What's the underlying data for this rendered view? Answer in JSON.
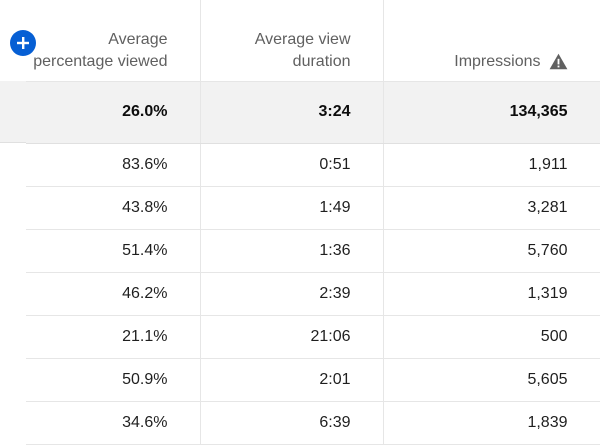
{
  "header": {
    "add_button_label": "+",
    "columns": [
      {
        "label": "Average percentage viewed"
      },
      {
        "label": "Average view duration"
      },
      {
        "label": "Impressions",
        "icon": "warning-icon"
      }
    ]
  },
  "totals": [
    "26.0%",
    "3:24",
    "134,365"
  ],
  "rows": [
    [
      "83.6%",
      "0:51",
      "1,911"
    ],
    [
      "43.8%",
      "1:49",
      "3,281"
    ],
    [
      "51.4%",
      "1:36",
      "5,760"
    ],
    [
      "46.2%",
      "2:39",
      "1,319"
    ],
    [
      "21.1%",
      "21:06",
      "500"
    ],
    [
      "50.9%",
      "2:01",
      "5,605"
    ],
    [
      "34.6%",
      "6:39",
      "1,839"
    ]
  ],
  "colors": {
    "accent": "#065fd4",
    "total_bg": "#f2f2f2",
    "header_text": "#606060",
    "border": "#e6e6e6"
  }
}
